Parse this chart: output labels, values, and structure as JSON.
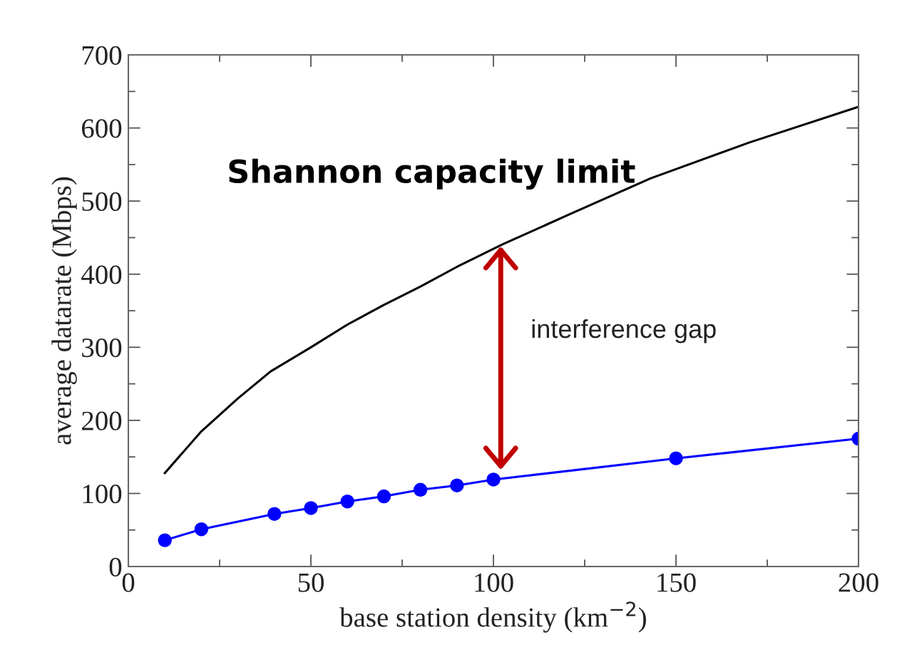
{
  "chart_data": {
    "type": "line",
    "xlabel": "base station density (km$^{−2}$)",
    "ylabel": "average datarate (Mbps)",
    "series": [
      {
        "color": "#000000",
        "marker": "none",
        "x": [
          10,
          20,
          30,
          39,
          50,
          60,
          70,
          80,
          90,
          102.6,
          120,
          143,
          170,
          200
        ],
        "values": [
          128,
          185,
          230,
          267,
          300,
          331,
          358,
          383,
          410,
          441,
          480,
          531,
          580,
          629
        ]
      },
      {
        "color": "#0000ff",
        "marker": "circle",
        "x": [
          10,
          20,
          40,
          50,
          60,
          70,
          80,
          90,
          100,
          150,
          200
        ],
        "values": [
          36,
          51,
          72,
          80,
          89,
          96,
          105,
          111,
          119,
          148,
          175
        ]
      }
    ],
    "annotations": [
      "Shannon capacity limit",
      "interference gap"
    ],
    "xlim": [
      0,
      200
    ],
    "ylim": [
      0,
      700
    ],
    "xticks": [
      0,
      {
        "value": 25,
        "label": null
      },
      50,
      {
        "value": 75,
        "label": null
      },
      100,
      {
        "value": 125,
        "label": null
      },
      150,
      {
        "value": 175,
        "label": null
      },
      200
    ],
    "yticks": [
      0,
      {
        "value": 50,
        "label": null
      },
      100,
      {
        "value": 150,
        "label": null
      },
      200,
      {
        "value": 250,
        "label": null
      },
      300,
      {
        "value": 350,
        "label": null
      },
      400,
      {
        "value": 450,
        "label": null
      },
      500,
      {
        "value": 550,
        "label": null
      },
      600,
      {
        "value": 650,
        "label": null
      },
      700
    ],
    "grid": false,
    "legend": false
  }
}
